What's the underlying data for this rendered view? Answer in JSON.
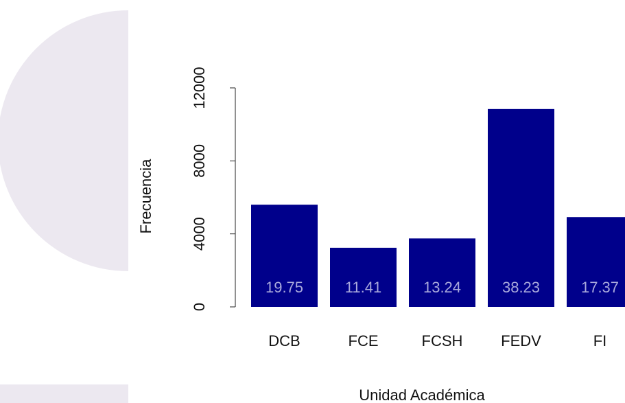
{
  "chart_data": {
    "type": "bar",
    "x_label": "Unidad Académica",
    "y_label": "Frecuencia",
    "categories": [
      "DCB",
      "FCE",
      "FCSH",
      "FEDV",
      "FI"
    ],
    "values": [
      5600,
      3240,
      3750,
      10840,
      4920
    ],
    "bar_labels": [
      19.75,
      11.41,
      13.24,
      38.23,
      17.37
    ],
    "color": "#00008b",
    "label_color": "#a9a9dc",
    "ylim": [
      0,
      12000
    ],
    "yticks": [
      0,
      4000,
      8000,
      12000
    ]
  }
}
